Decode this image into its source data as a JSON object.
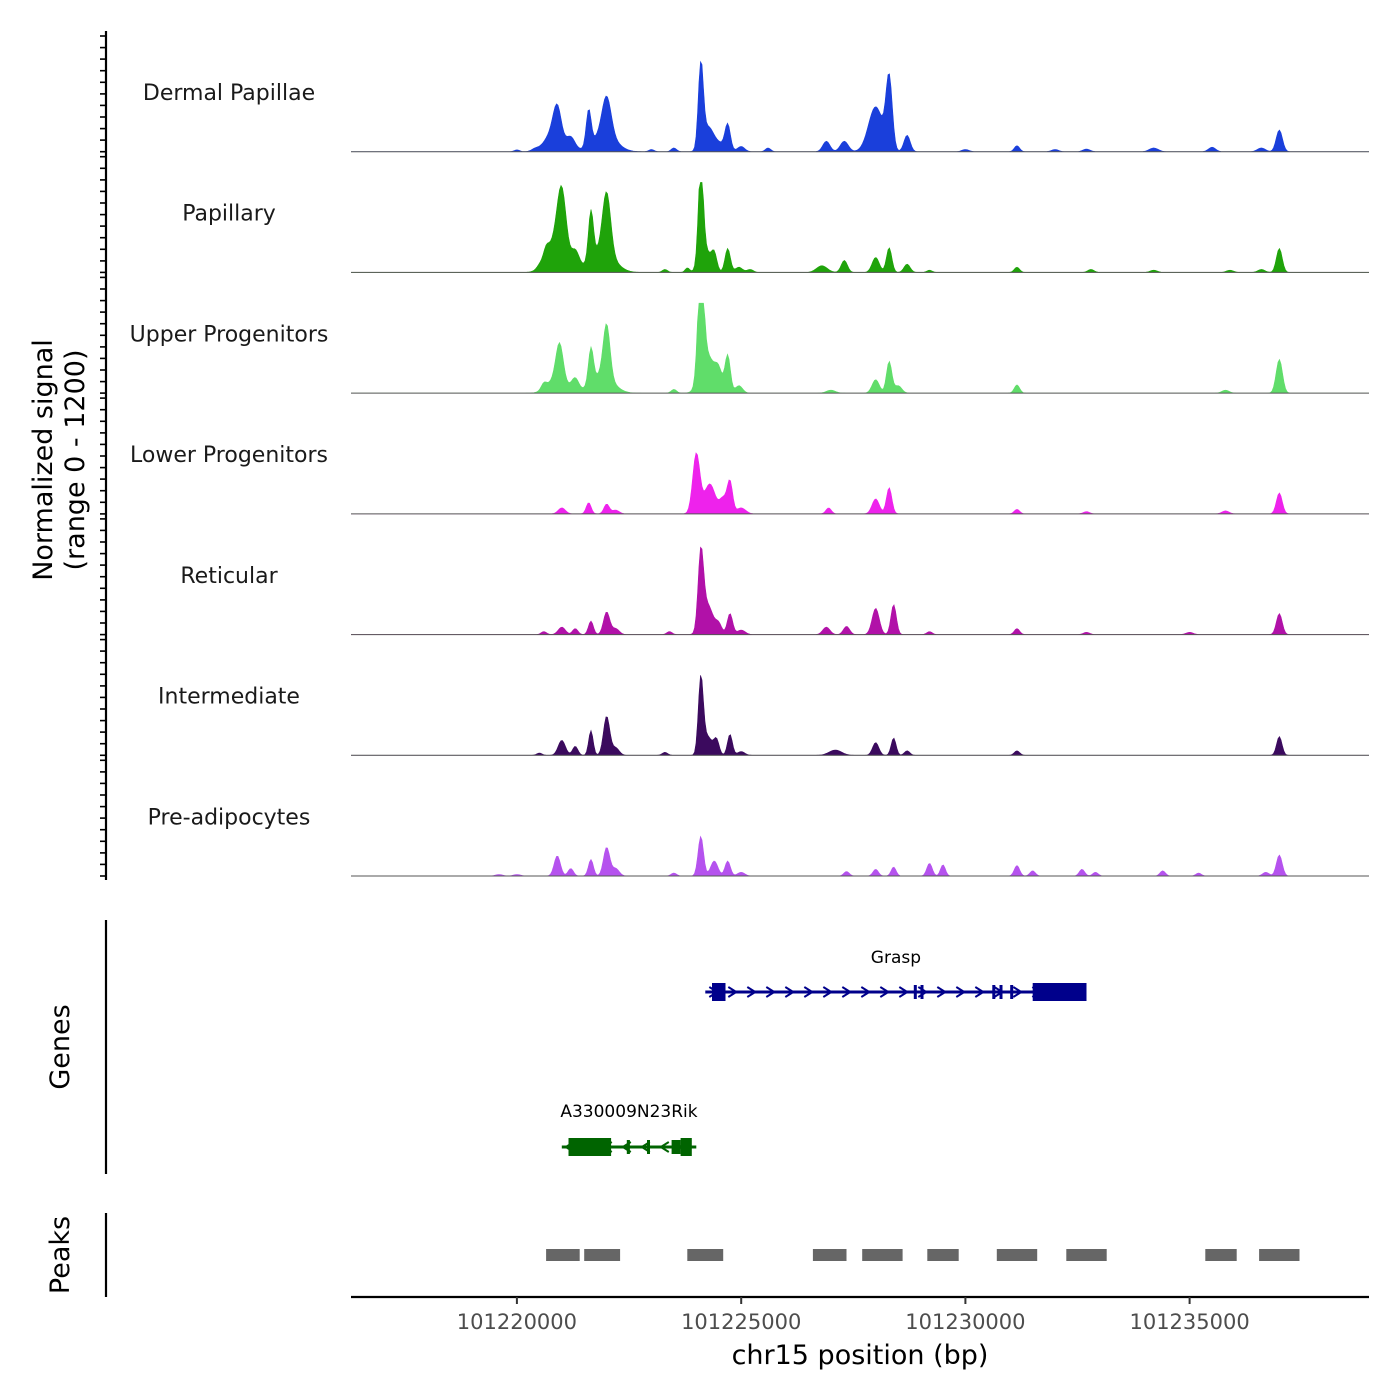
{
  "chart_data": {
    "type": "area",
    "chromosome": "chr15",
    "xlabel": "chr15 position (bp)",
    "ylabel_line1": "Normalized signal",
    "ylabel_line2": "(range 0 - 1200)",
    "x_range": [
      101216300,
      101239000
    ],
    "y_range": [
      0,
      1200
    ],
    "x_ticks": [
      101220000,
      101225000,
      101230000,
      101235000
    ],
    "x_tick_labels": [
      "101220000",
      "101225000",
      "101230000",
      "101235000"
    ],
    "tracks": [
      {
        "name": "Dermal Papillae",
        "color": "#1a3fdb",
        "peaks": [
          {
            "x": 101220000,
            "y": 25,
            "w": 60
          },
          {
            "x": 101220400,
            "y": 30,
            "w": 80
          },
          {
            "x": 101220900,
            "y": 420,
            "w": 90
          },
          {
            "x": 101220800,
            "y": 250,
            "w": 180
          },
          {
            "x": 101221200,
            "y": 180,
            "w": 100
          },
          {
            "x": 101221600,
            "y": 480,
            "w": 55
          },
          {
            "x": 101222000,
            "y": 500,
            "w": 100
          },
          {
            "x": 101221950,
            "y": 250,
            "w": 250
          },
          {
            "x": 101223000,
            "y": 30,
            "w": 60
          },
          {
            "x": 101223500,
            "y": 50,
            "w": 60
          },
          {
            "x": 101224100,
            "y": 1100,
            "w": 55
          },
          {
            "x": 101224250,
            "y": 300,
            "w": 120
          },
          {
            "x": 101224700,
            "y": 330,
            "w": 60
          },
          {
            "x": 101224500,
            "y": 110,
            "w": 160
          },
          {
            "x": 101225000,
            "y": 70,
            "w": 80
          },
          {
            "x": 101225600,
            "y": 50,
            "w": 60
          },
          {
            "x": 101226900,
            "y": 140,
            "w": 80
          },
          {
            "x": 101227300,
            "y": 140,
            "w": 90
          },
          {
            "x": 101228000,
            "y": 600,
            "w": 160
          },
          {
            "x": 101228300,
            "y": 950,
            "w": 70
          },
          {
            "x": 101228700,
            "y": 220,
            "w": 70
          },
          {
            "x": 101230000,
            "y": 30,
            "w": 80
          },
          {
            "x": 101231150,
            "y": 80,
            "w": 60
          },
          {
            "x": 101232000,
            "y": 30,
            "w": 80
          },
          {
            "x": 101232700,
            "y": 35,
            "w": 80
          },
          {
            "x": 101234200,
            "y": 50,
            "w": 100
          },
          {
            "x": 101235500,
            "y": 60,
            "w": 80
          },
          {
            "x": 101236600,
            "y": 50,
            "w": 90
          },
          {
            "x": 101237000,
            "y": 290,
            "w": 70
          }
        ]
      },
      {
        "name": "Papillary",
        "color": "#1fa30a",
        "peaks": [
          {
            "x": 101220500,
            "y": 30,
            "w": 60
          },
          {
            "x": 101220650,
            "y": 120,
            "w": 60
          },
          {
            "x": 101221000,
            "y": 850,
            "w": 100
          },
          {
            "x": 101220850,
            "y": 400,
            "w": 200
          },
          {
            "x": 101221300,
            "y": 250,
            "w": 90
          },
          {
            "x": 101221650,
            "y": 650,
            "w": 55
          },
          {
            "x": 101222000,
            "y": 800,
            "w": 90
          },
          {
            "x": 101221900,
            "y": 300,
            "w": 260
          },
          {
            "x": 101223300,
            "y": 40,
            "w": 60
          },
          {
            "x": 101223800,
            "y": 60,
            "w": 50
          },
          {
            "x": 101224100,
            "y": 1250,
            "w": 55
          },
          {
            "x": 101224200,
            "y": 300,
            "w": 120
          },
          {
            "x": 101224400,
            "y": 220,
            "w": 60
          },
          {
            "x": 101224700,
            "y": 320,
            "w": 60
          },
          {
            "x": 101224950,
            "y": 70,
            "w": 80
          },
          {
            "x": 101225200,
            "y": 40,
            "w": 70
          },
          {
            "x": 101226800,
            "y": 90,
            "w": 120
          },
          {
            "x": 101227300,
            "y": 160,
            "w": 70
          },
          {
            "x": 101228000,
            "y": 200,
            "w": 80
          },
          {
            "x": 101228300,
            "y": 330,
            "w": 60
          },
          {
            "x": 101228700,
            "y": 110,
            "w": 70
          },
          {
            "x": 101229200,
            "y": 30,
            "w": 60
          },
          {
            "x": 101231150,
            "y": 70,
            "w": 60
          },
          {
            "x": 101232800,
            "y": 40,
            "w": 70
          },
          {
            "x": 101234200,
            "y": 30,
            "w": 80
          },
          {
            "x": 101235900,
            "y": 30,
            "w": 80
          },
          {
            "x": 101236600,
            "y": 40,
            "w": 80
          },
          {
            "x": 101237000,
            "y": 320,
            "w": 65
          }
        ]
      },
      {
        "name": "Upper Progenitors",
        "color": "#60dd6a",
        "peaks": [
          {
            "x": 101220600,
            "y": 80,
            "w": 60
          },
          {
            "x": 101220950,
            "y": 480,
            "w": 80
          },
          {
            "x": 101220900,
            "y": 200,
            "w": 200
          },
          {
            "x": 101221300,
            "y": 170,
            "w": 80
          },
          {
            "x": 101221650,
            "y": 470,
            "w": 55
          },
          {
            "x": 101222000,
            "y": 700,
            "w": 75
          },
          {
            "x": 101221900,
            "y": 250,
            "w": 240
          },
          {
            "x": 101223500,
            "y": 50,
            "w": 60
          },
          {
            "x": 101224100,
            "y": 1500,
            "w": 65
          },
          {
            "x": 101224250,
            "y": 500,
            "w": 150
          },
          {
            "x": 101224500,
            "y": 250,
            "w": 80
          },
          {
            "x": 101224700,
            "y": 500,
            "w": 60
          },
          {
            "x": 101224950,
            "y": 100,
            "w": 80
          },
          {
            "x": 101227000,
            "y": 40,
            "w": 100
          },
          {
            "x": 101228000,
            "y": 180,
            "w": 80
          },
          {
            "x": 101228300,
            "y": 420,
            "w": 60
          },
          {
            "x": 101228500,
            "y": 100,
            "w": 80
          },
          {
            "x": 101231150,
            "y": 110,
            "w": 60
          },
          {
            "x": 101235800,
            "y": 40,
            "w": 80
          },
          {
            "x": 101237000,
            "y": 450,
            "w": 70
          }
        ]
      },
      {
        "name": "Lower Progenitors",
        "color": "#ee22ec",
        "peaks": [
          {
            "x": 101221000,
            "y": 80,
            "w": 80
          },
          {
            "x": 101221600,
            "y": 150,
            "w": 55
          },
          {
            "x": 101222000,
            "y": 130,
            "w": 60
          },
          {
            "x": 101222200,
            "y": 50,
            "w": 80
          },
          {
            "x": 101224000,
            "y": 800,
            "w": 80
          },
          {
            "x": 101224300,
            "y": 400,
            "w": 120
          },
          {
            "x": 101224600,
            "y": 200,
            "w": 80
          },
          {
            "x": 101224750,
            "y": 420,
            "w": 60
          },
          {
            "x": 101225000,
            "y": 80,
            "w": 100
          },
          {
            "x": 101226950,
            "y": 80,
            "w": 60
          },
          {
            "x": 101228000,
            "y": 200,
            "w": 80
          },
          {
            "x": 101228300,
            "y": 350,
            "w": 60
          },
          {
            "x": 101231150,
            "y": 60,
            "w": 60
          },
          {
            "x": 101232700,
            "y": 30,
            "w": 70
          },
          {
            "x": 101235800,
            "y": 40,
            "w": 80
          },
          {
            "x": 101237000,
            "y": 280,
            "w": 65
          }
        ]
      },
      {
        "name": "Reticular",
        "color": "#b111a8",
        "peaks": [
          {
            "x": 101220600,
            "y": 40,
            "w": 60
          },
          {
            "x": 101221000,
            "y": 100,
            "w": 80
          },
          {
            "x": 101221300,
            "y": 80,
            "w": 60
          },
          {
            "x": 101221650,
            "y": 180,
            "w": 55
          },
          {
            "x": 101222000,
            "y": 300,
            "w": 70
          },
          {
            "x": 101222200,
            "y": 80,
            "w": 80
          },
          {
            "x": 101223400,
            "y": 40,
            "w": 60
          },
          {
            "x": 101224100,
            "y": 1000,
            "w": 60
          },
          {
            "x": 101224250,
            "y": 400,
            "w": 120
          },
          {
            "x": 101224500,
            "y": 130,
            "w": 70
          },
          {
            "x": 101224750,
            "y": 280,
            "w": 60
          },
          {
            "x": 101225000,
            "y": 60,
            "w": 90
          },
          {
            "x": 101226900,
            "y": 100,
            "w": 80
          },
          {
            "x": 101227350,
            "y": 110,
            "w": 70
          },
          {
            "x": 101228000,
            "y": 350,
            "w": 80
          },
          {
            "x": 101228400,
            "y": 400,
            "w": 60
          },
          {
            "x": 101229200,
            "y": 40,
            "w": 60
          },
          {
            "x": 101231150,
            "y": 80,
            "w": 60
          },
          {
            "x": 101232700,
            "y": 30,
            "w": 70
          },
          {
            "x": 101235000,
            "y": 30,
            "w": 80
          },
          {
            "x": 101237000,
            "y": 280,
            "w": 65
          }
        ]
      },
      {
        "name": "Intermediate",
        "color": "#3b0a5e",
        "peaks": [
          {
            "x": 101220500,
            "y": 30,
            "w": 60
          },
          {
            "x": 101221000,
            "y": 200,
            "w": 80
          },
          {
            "x": 101221300,
            "y": 120,
            "w": 60
          },
          {
            "x": 101221650,
            "y": 330,
            "w": 50
          },
          {
            "x": 101222000,
            "y": 520,
            "w": 70
          },
          {
            "x": 101222200,
            "y": 100,
            "w": 80
          },
          {
            "x": 101223300,
            "y": 40,
            "w": 60
          },
          {
            "x": 101224100,
            "y": 1000,
            "w": 55
          },
          {
            "x": 101224250,
            "y": 250,
            "w": 100
          },
          {
            "x": 101224450,
            "y": 200,
            "w": 60
          },
          {
            "x": 101224750,
            "y": 280,
            "w": 55
          },
          {
            "x": 101225000,
            "y": 50,
            "w": 80
          },
          {
            "x": 101227100,
            "y": 70,
            "w": 140
          },
          {
            "x": 101228000,
            "y": 170,
            "w": 70
          },
          {
            "x": 101228400,
            "y": 230,
            "w": 55
          },
          {
            "x": 101228700,
            "y": 60,
            "w": 60
          },
          {
            "x": 101231150,
            "y": 60,
            "w": 60
          },
          {
            "x": 101237000,
            "y": 250,
            "w": 60
          }
        ]
      },
      {
        "name": "Pre-adipocytes",
        "color": "#b552ee",
        "peaks": [
          {
            "x": 101219600,
            "y": 20,
            "w": 80
          },
          {
            "x": 101220000,
            "y": 20,
            "w": 80
          },
          {
            "x": 101220900,
            "y": 270,
            "w": 70
          },
          {
            "x": 101221200,
            "y": 100,
            "w": 60
          },
          {
            "x": 101221650,
            "y": 220,
            "w": 55
          },
          {
            "x": 101222000,
            "y": 380,
            "w": 70
          },
          {
            "x": 101222200,
            "y": 100,
            "w": 80
          },
          {
            "x": 101223500,
            "y": 40,
            "w": 60
          },
          {
            "x": 101224100,
            "y": 530,
            "w": 60
          },
          {
            "x": 101224400,
            "y": 200,
            "w": 80
          },
          {
            "x": 101224700,
            "y": 200,
            "w": 60
          },
          {
            "x": 101225000,
            "y": 50,
            "w": 80
          },
          {
            "x": 101227350,
            "y": 60,
            "w": 60
          },
          {
            "x": 101228000,
            "y": 90,
            "w": 60
          },
          {
            "x": 101228400,
            "y": 120,
            "w": 55
          },
          {
            "x": 101229200,
            "y": 170,
            "w": 60
          },
          {
            "x": 101229500,
            "y": 150,
            "w": 55
          },
          {
            "x": 101231150,
            "y": 140,
            "w": 60
          },
          {
            "x": 101231500,
            "y": 70,
            "w": 60
          },
          {
            "x": 101232600,
            "y": 90,
            "w": 60
          },
          {
            "x": 101232900,
            "y": 50,
            "w": 60
          },
          {
            "x": 101234400,
            "y": 70,
            "w": 60
          },
          {
            "x": 101235200,
            "y": 40,
            "w": 60
          },
          {
            "x": 101236700,
            "y": 50,
            "w": 70
          },
          {
            "x": 101237000,
            "y": 280,
            "w": 65
          }
        ]
      }
    ],
    "genes": {
      "axis_title": "Genes",
      "items": [
        {
          "name": "Grasp",
          "strand": "+",
          "color": "#00008b",
          "start": 101224200,
          "end": 101232700,
          "exons": [
            {
              "start": 101224350,
              "end": 101224650,
              "kind": "utr"
            },
            {
              "start": 101228850,
              "end": 101228900,
              "kind": "cds"
            },
            {
              "start": 101229000,
              "end": 101229050,
              "kind": "cds"
            },
            {
              "start": 101230600,
              "end": 101230660,
              "kind": "cds"
            },
            {
              "start": 101230760,
              "end": 101230820,
              "kind": "cds"
            },
            {
              "start": 101231000,
              "end": 101231060,
              "kind": "cds"
            },
            {
              "start": 101231500,
              "end": 101232700,
              "kind": "utr"
            }
          ]
        },
        {
          "name": "A330009N23Rik",
          "strand": "-",
          "color": "#006400",
          "start": 101221000,
          "end": 101224000,
          "exons": [
            {
              "start": 101221150,
              "end": 101222100,
              "kind": "utr"
            },
            {
              "start": 101222450,
              "end": 101222520,
              "kind": "cds"
            },
            {
              "start": 101222900,
              "end": 101222960,
              "kind": "cds"
            },
            {
              "start": 101223450,
              "end": 101223650,
              "kind": "cds"
            },
            {
              "start": 101223650,
              "end": 101223900,
              "kind": "utr"
            }
          ]
        }
      ]
    },
    "peaks_track": {
      "axis_title": "Peaks",
      "color": "#666666",
      "regions": [
        [
          101220650,
          101221400
        ],
        [
          101221500,
          101222300
        ],
        [
          101223800,
          101224600
        ],
        [
          101226600,
          101227350
        ],
        [
          101227700,
          101228600
        ],
        [
          101229150,
          101229850
        ],
        [
          101230700,
          101231600
        ],
        [
          101232250,
          101233150
        ],
        [
          101235350,
          101236050
        ],
        [
          101236550,
          101237450
        ]
      ]
    }
  }
}
